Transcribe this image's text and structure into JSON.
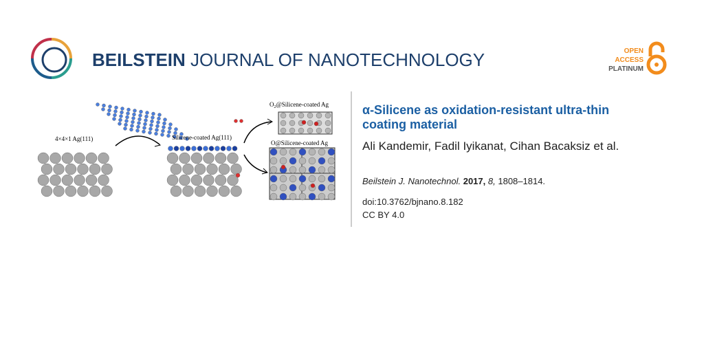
{
  "header": {
    "brand": "BEILSTEIN",
    "journal": "JOURNAL OF NANOTECHNOLOGY",
    "badge": [
      "OPEN",
      "ACCESS",
      "PLATINUM"
    ]
  },
  "figure": {
    "label_slab": "4×4×1 Ag(111)",
    "label_coated": "Silicene-coated Ag(111)",
    "label_o2": {
      "prefix": "O",
      "sub": "2",
      "suffix": "@Silicene-coated Ag"
    },
    "label_o": "O@Silicene-coated Ag"
  },
  "article": {
    "title": [
      "α-Silicene as oxidation-resistant ultra-thin",
      "coating material"
    ],
    "authors": "Ali Kandemir, Fadil Iyikanat, Cihan Bacaksiz et al.",
    "citation": {
      "journal": "Beilstein J. Nanotechnol.",
      "year": "2017,",
      "volume": "8,",
      "pages": "1808–1814."
    },
    "doi": "doi:10.3762/bjnano.8.182",
    "license": "CC BY 4.0"
  }
}
